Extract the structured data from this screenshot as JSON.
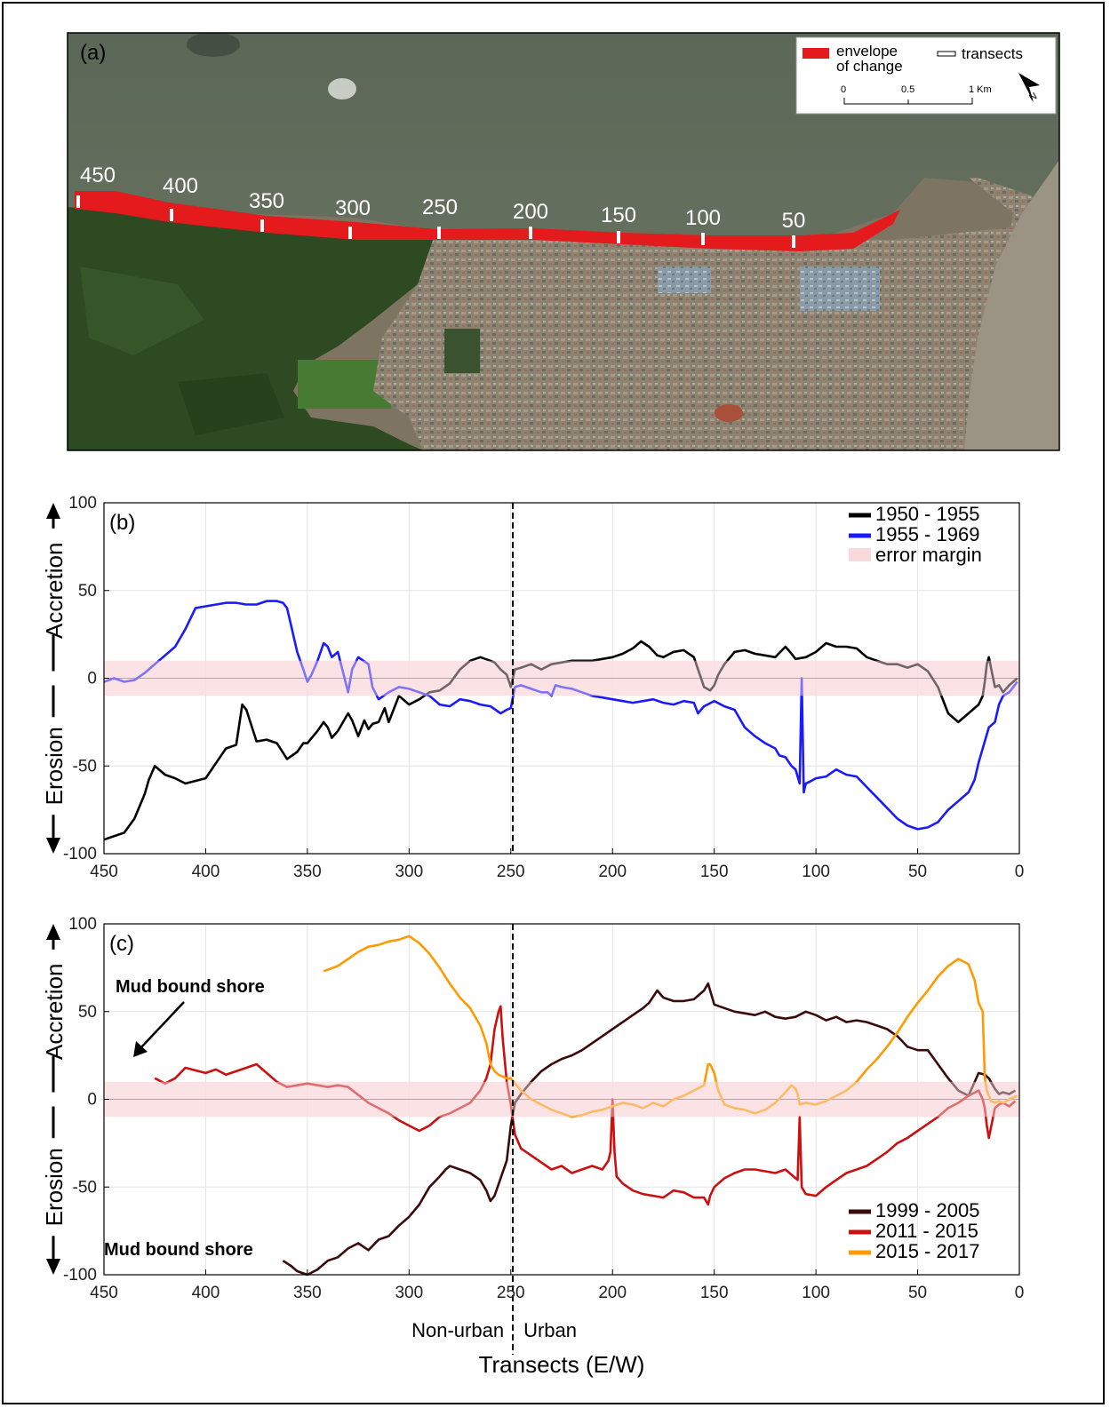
{
  "panel_a": {
    "label": "(a)",
    "legend": {
      "envelope_label_1": "envelope",
      "envelope_label_2": "of change",
      "transects_label": "transects"
    },
    "scalebar": [
      "0",
      "0.5",
      "1 Km"
    ],
    "north": "N",
    "transect_labels": [
      "450",
      "400",
      "350",
      "300",
      "250",
      "200",
      "150",
      "100",
      "50"
    ],
    "colors": {
      "envelope": "#e41a1c",
      "sea": "#5e6a55",
      "vegetation": "#2f4a22",
      "urban": "#8a8070",
      "open": "#7a6f5c"
    }
  },
  "chart_data": [
    {
      "type": "line",
      "panel": "(b)",
      "xlim": [
        450,
        0
      ],
      "ylim": [
        -100,
        100
      ],
      "xticks": [
        "450",
        "400",
        "350",
        "300",
        "250",
        "200",
        "150",
        "100",
        "50",
        "0"
      ],
      "yticks": [
        "100",
        "50",
        "0",
        "-50",
        "-100"
      ],
      "ylabel_up": "Accretion",
      "ylabel_down": "Erosion",
      "error_margin": [
        -10,
        10
      ],
      "divider_x": 249,
      "grid": true,
      "legend_position": "top-right",
      "legend_error": "error margin",
      "series": [
        {
          "name": "1950 - 1955",
          "color": "#000000",
          "x": [
            450,
            440,
            435,
            430,
            428,
            425,
            420,
            415,
            410,
            400,
            390,
            385,
            382,
            380,
            375,
            370,
            365,
            360,
            355,
            352,
            350,
            345,
            342,
            340,
            338,
            335,
            330,
            328,
            325,
            322,
            320,
            318,
            315,
            312,
            310,
            305,
            300,
            295,
            290,
            285,
            280,
            275,
            270,
            265,
            260,
            258,
            255,
            252,
            250,
            248,
            245,
            240,
            235,
            230,
            220,
            210,
            200,
            195,
            190,
            186,
            182,
            178,
            175,
            170,
            165,
            160,
            155,
            152,
            150,
            148,
            145,
            140,
            135,
            130,
            125,
            120,
            115,
            112,
            110,
            105,
            100,
            95,
            90,
            85,
            80,
            75,
            70,
            65,
            60,
            55,
            50,
            45,
            40,
            35,
            30,
            25,
            20,
            18,
            17,
            16,
            15,
            12,
            10,
            8,
            5,
            3,
            1
          ],
          "y": [
            -92,
            -88,
            -80,
            -66,
            -58,
            -50,
            -55,
            -57,
            -60,
            -57,
            -40,
            -38,
            -15,
            -18,
            -36,
            -35,
            -37,
            -46,
            -42,
            -37,
            -37,
            -30,
            -25,
            -28,
            -34,
            -30,
            -20,
            -24,
            -33,
            -24,
            -29,
            -26,
            -25,
            -17,
            -25,
            -10,
            -15,
            -12,
            -8,
            -7,
            -3,
            5,
            10,
            12,
            10,
            9,
            5,
            2,
            -5,
            5,
            6,
            8,
            5,
            8,
            10,
            10,
            12,
            14,
            17,
            21,
            18,
            13,
            12,
            15,
            16,
            12,
            -5,
            -7,
            -4,
            2,
            8,
            15,
            16,
            14,
            13,
            12,
            18,
            14,
            11,
            12,
            15,
            20,
            18,
            18,
            17,
            12,
            10,
            8,
            8,
            6,
            8,
            4,
            -5,
            -20,
            -25,
            -20,
            -15,
            -10,
            -2,
            8,
            12,
            -5,
            -4,
            -8,
            -4,
            -2,
            0
          ]
        },
        {
          "name": "1955 - 1969",
          "color": "#1a1aff",
          "x": [
            450,
            445,
            440,
            435,
            430,
            425,
            420,
            415,
            410,
            405,
            400,
            390,
            385,
            380,
            375,
            370,
            365,
            362,
            360,
            358,
            355,
            352,
            350,
            348,
            345,
            342,
            340,
            338,
            335,
            330,
            328,
            325,
            320,
            318,
            315,
            310,
            305,
            300,
            295,
            290,
            285,
            280,
            275,
            270,
            265,
            260,
            255,
            252,
            250,
            248,
            245,
            240,
            235,
            232,
            230,
            228,
            225,
            220,
            215,
            210,
            205,
            200,
            195,
            190,
            185,
            180,
            175,
            170,
            165,
            160,
            158,
            155,
            150,
            145,
            140,
            135,
            130,
            125,
            120,
            118,
            115,
            112,
            110,
            108,
            107,
            106,
            105,
            103,
            100,
            95,
            90,
            85,
            80,
            75,
            70,
            65,
            60,
            55,
            50,
            45,
            40,
            35,
            30,
            25,
            22,
            20,
            18,
            15,
            12,
            10,
            8,
            5,
            3,
            1
          ],
          "y": [
            -2,
            0,
            -2,
            -1,
            3,
            8,
            13,
            18,
            28,
            40,
            41,
            43,
            43,
            42,
            42,
            44,
            44,
            43,
            40,
            30,
            15,
            5,
            -2,
            2,
            10,
            20,
            18,
            12,
            15,
            -8,
            5,
            12,
            8,
            -5,
            -12,
            -8,
            -5,
            -6,
            -8,
            -10,
            -15,
            -16,
            -12,
            -13,
            -15,
            -16,
            -20,
            -18,
            -17,
            -5,
            -4,
            -6,
            -8,
            -8,
            -10,
            -4,
            -5,
            -6,
            -8,
            -10,
            -11,
            -12,
            -13,
            -14,
            -13,
            -12,
            -14,
            -15,
            -13,
            -14,
            -20,
            -16,
            -13,
            -16,
            -18,
            -28,
            -33,
            -37,
            -40,
            -44,
            -45,
            -50,
            -52,
            -60,
            0,
            -65,
            -60,
            -59,
            -57,
            -56,
            -52,
            -55,
            -56,
            -62,
            -68,
            -74,
            -80,
            -84,
            -86,
            -85,
            -82,
            -75,
            -70,
            -65,
            -58,
            -48,
            -40,
            -28,
            -25,
            -15,
            -10,
            -8,
            -5,
            -2
          ]
        }
      ]
    },
    {
      "type": "line",
      "panel": "(c)",
      "xlim": [
        450,
        0
      ],
      "ylim": [
        -100,
        100
      ],
      "xticks": [
        "450",
        "400",
        "350",
        "300",
        "250",
        "200",
        "150",
        "100",
        "50",
        "0"
      ],
      "yticks": [
        "100",
        "50",
        "0",
        "-50",
        "-100"
      ],
      "ylabel_up": "Accretion",
      "ylabel_down": "Erosion",
      "xlabel": "Transects (E/W)",
      "region_left": "Non-urban",
      "region_right": "Urban",
      "annotation_top": "Mud bound shore",
      "annotation_bottom": "Mud bound shore",
      "error_margin": [
        -10,
        10
      ],
      "divider_x": 249,
      "grid": true,
      "legend_position": "bottom-right",
      "series": [
        {
          "name": "1999 - 2005",
          "color": "#3b0a0a",
          "x": [
            362,
            358,
            355,
            350,
            345,
            340,
            335,
            330,
            325,
            320,
            315,
            310,
            305,
            300,
            295,
            290,
            285,
            282,
            280,
            275,
            270,
            265,
            262,
            260,
            258,
            255,
            252,
            250,
            248,
            245,
            240,
            235,
            230,
            225,
            220,
            215,
            210,
            205,
            200,
            195,
            190,
            185,
            182,
            178,
            175,
            170,
            165,
            160,
            155,
            153,
            150,
            145,
            140,
            135,
            130,
            125,
            120,
            115,
            110,
            105,
            100,
            95,
            90,
            85,
            80,
            75,
            70,
            65,
            60,
            55,
            50,
            45,
            40,
            35,
            30,
            25,
            20,
            17,
            15,
            12,
            10,
            8,
            5,
            2
          ],
          "y": [
            -92,
            -95,
            -98,
            -100,
            -97,
            -92,
            -90,
            -85,
            -82,
            -86,
            -80,
            -78,
            -72,
            -67,
            -60,
            -50,
            -44,
            -40,
            -38,
            -40,
            -42,
            -46,
            -52,
            -58,
            -55,
            -45,
            -35,
            -15,
            -2,
            3,
            10,
            16,
            20,
            23,
            25,
            28,
            32,
            36,
            40,
            44,
            48,
            52,
            55,
            62,
            58,
            56,
            56,
            57,
            62,
            66,
            54,
            52,
            50,
            49,
            48,
            50,
            47,
            46,
            47,
            50,
            48,
            45,
            47,
            44,
            45,
            44,
            42,
            40,
            36,
            30,
            28,
            28,
            20,
            12,
            5,
            2,
            15,
            14,
            12,
            6,
            3,
            4,
            3,
            5
          ]
        },
        {
          "name": "2011 - 2015",
          "color": "#cc1010",
          "x": [
            425,
            420,
            415,
            410,
            400,
            395,
            390,
            385,
            380,
            375,
            370,
            365,
            360,
            350,
            345,
            340,
            335,
            330,
            320,
            310,
            305,
            300,
            295,
            290,
            285,
            280,
            275,
            270,
            265,
            262,
            260,
            258,
            256,
            255,
            254,
            252,
            250,
            248,
            245,
            240,
            235,
            230,
            225,
            220,
            215,
            210,
            205,
            202,
            201,
            200,
            199,
            198,
            195,
            190,
            185,
            180,
            175,
            170,
            165,
            160,
            155,
            153,
            152,
            150,
            148,
            145,
            140,
            135,
            130,
            125,
            120,
            115,
            110,
            109,
            108,
            107,
            105,
            100,
            95,
            90,
            85,
            80,
            75,
            70,
            65,
            60,
            55,
            50,
            45,
            40,
            35,
            30,
            25,
            20,
            18,
            17,
            16,
            15,
            12,
            10,
            8,
            5,
            2
          ],
          "y": [
            12,
            9,
            12,
            18,
            15,
            17,
            14,
            16,
            18,
            20,
            15,
            10,
            7,
            9,
            8,
            7,
            8,
            7,
            -2,
            -8,
            -12,
            -15,
            -18,
            -15,
            -10,
            -8,
            -5,
            -2,
            5,
            12,
            20,
            40,
            50,
            53,
            35,
            10,
            -3,
            -20,
            -28,
            -32,
            -36,
            -40,
            -38,
            -42,
            -40,
            -38,
            -40,
            -35,
            -30,
            0,
            -30,
            -44,
            -48,
            -52,
            -54,
            -55,
            -56,
            -52,
            -53,
            -56,
            -56,
            -60,
            -55,
            -50,
            -48,
            -45,
            -42,
            -40,
            -40,
            -41,
            -42,
            -40,
            -45,
            -46,
            -10,
            -50,
            -54,
            -55,
            -50,
            -46,
            -42,
            -40,
            -38,
            -34,
            -30,
            -25,
            -22,
            -18,
            -14,
            -10,
            -5,
            -2,
            2,
            5,
            0,
            -5,
            -15,
            -22,
            -5,
            -3,
            -2,
            -4,
            -1
          ]
        },
        {
          "name": "2015 - 2017",
          "color": "#ff9a00",
          "x": [
            342,
            335,
            330,
            325,
            320,
            315,
            310,
            305,
            300,
            295,
            290,
            285,
            280,
            275,
            270,
            265,
            262,
            260,
            258,
            256,
            254,
            252,
            250,
            248,
            245,
            240,
            235,
            230,
            225,
            220,
            215,
            210,
            205,
            200,
            195,
            190,
            185,
            180,
            175,
            170,
            165,
            160,
            155,
            153,
            152,
            150,
            148,
            145,
            140,
            135,
            130,
            125,
            120,
            115,
            112,
            110,
            109,
            108,
            105,
            100,
            95,
            90,
            85,
            80,
            75,
            70,
            65,
            60,
            55,
            50,
            45,
            40,
            35,
            30,
            25,
            22,
            20,
            18,
            17,
            16,
            15,
            14,
            12,
            10,
            8,
            5,
            3,
            1
          ],
          "y": [
            73,
            76,
            80,
            84,
            87,
            88,
            90,
            91,
            93,
            89,
            83,
            75,
            66,
            58,
            52,
            42,
            32,
            20,
            16,
            14,
            13,
            12,
            12,
            9,
            5,
            0,
            -3,
            -6,
            -8,
            -10,
            -9,
            -7,
            -6,
            -4,
            -2,
            -3,
            -5,
            -2,
            -4,
            0,
            2,
            5,
            8,
            20,
            20,
            15,
            5,
            -3,
            -5,
            -6,
            -8,
            -6,
            -2,
            4,
            8,
            6,
            3,
            -3,
            -2,
            -3,
            -1,
            2,
            5,
            10,
            17,
            23,
            30,
            38,
            47,
            55,
            62,
            70,
            76,
            80,
            77,
            68,
            55,
            50,
            12,
            5,
            2,
            -1,
            -2,
            -1,
            -2,
            0,
            1,
            2
          ]
        }
      ]
    }
  ]
}
